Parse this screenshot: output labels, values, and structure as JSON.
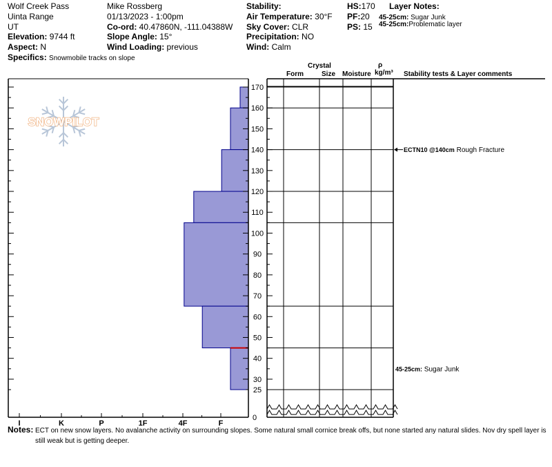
{
  "header": {
    "location": "Wolf Creek Pass",
    "range": "Uinta Range",
    "state": "UT",
    "elevation_label": "Elevation:",
    "elevation": "9744 ft",
    "aspect_label": "Aspect:",
    "aspect": "N",
    "specifics_label": "Specifics:",
    "specifics": "Snowmobile tracks on slope",
    "observer": "Mike Rossberg",
    "datetime": "01/13/2023 - 1:00pm",
    "coord_label": "Co-ord:",
    "coord": "40.47860N, -111.04388W",
    "slope_label": "Slope Angle:",
    "slope": "15°",
    "wind_loading_label": "Wind Loading:",
    "wind_loading": "previous",
    "stability_label": "Stability:",
    "air_temp_label": "Air Temperature:",
    "air_temp": "30°F",
    "sky_label": "Sky Cover:",
    "sky": "CLR",
    "precip_label": "Precipitation:",
    "precip": "NO",
    "wind_label": "Wind:",
    "wind": "Calm",
    "hs_label": "HS:",
    "hs": "170",
    "pf_label": "PF:",
    "pf": "20",
    "ps_label": "PS:",
    "ps": "15",
    "layer_notes_title": "Layer Notes:",
    "layer_notes": [
      {
        "depth": "45-25cm:",
        "text": "Sugar Junk"
      },
      {
        "depth": "45-25cm:",
        "text": "Problematic layer"
      }
    ]
  },
  "logo_text": "SNOWPILOT",
  "columns": {
    "crystal": "Crystal",
    "form": "Form",
    "size": "Size",
    "moisture": "Moisture",
    "rho": "ρ",
    "density_unit": "kg/m³",
    "stability": "Stability tests & Layer comments"
  },
  "chart_data": {
    "type": "bar",
    "orientation": "horizontal",
    "x_categories": [
      "I",
      "K",
      "P",
      "1F",
      "4F",
      "F"
    ],
    "y_ticks": [
      25,
      30,
      40,
      50,
      60,
      70,
      80,
      90,
      100,
      110,
      120,
      130,
      140,
      150,
      160,
      170
    ],
    "y_bottom_label": "0",
    "layers": [
      {
        "top": 170,
        "bottom": 160,
        "hardness_index": 0.3
      },
      {
        "top": 160,
        "bottom": 140,
        "hardness_index": 0.65
      },
      {
        "top": 140,
        "bottom": 120,
        "hardness_index": 0.97
      },
      {
        "top": 120,
        "bottom": 105,
        "hardness_index": 1.98
      },
      {
        "top": 105,
        "bottom": 65,
        "hardness_index": 2.33
      },
      {
        "top": 65,
        "bottom": 45,
        "hardness_index": 1.67
      },
      {
        "top": 45,
        "bottom": 25,
        "hardness_index": 0.65
      }
    ],
    "layer_boundaries": [
      170,
      160,
      140,
      120,
      105,
      65,
      45,
      25
    ],
    "highlight_depth": 45,
    "colors": {
      "bar_fill": "#9999d6",
      "bar_edge": "#00008b",
      "highlight": "#cc0000"
    }
  },
  "comments": [
    {
      "depth": 140,
      "bold": "ECTN10 @140cm",
      "text": "Rough Fracture",
      "arrow": true
    },
    {
      "depth": 35,
      "bold": "45-25cm:",
      "text": "Sugar Junk",
      "arrow": false
    }
  ],
  "notes": {
    "label": "Notes:",
    "text": "ECT on new snow layers. No avalanche activity on surrounding slopes. Some natural small cornice break offs, but none started any natural slides. Nov dry spell layer is still weak but is getting deeper."
  }
}
